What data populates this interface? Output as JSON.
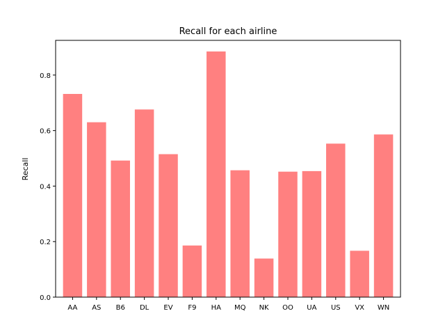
{
  "chart_data": {
    "type": "bar",
    "title": "Recall for each airline",
    "xlabel": "",
    "ylabel": "Recall",
    "categories": [
      "AA",
      "AS",
      "B6",
      "DL",
      "EV",
      "F9",
      "HA",
      "MQ",
      "NK",
      "OO",
      "UA",
      "US",
      "VX",
      "WN"
    ],
    "values": [
      0.732,
      0.63,
      0.492,
      0.676,
      0.515,
      0.186,
      0.885,
      0.457,
      0.139,
      0.452,
      0.454,
      0.553,
      0.167,
      0.586
    ],
    "ylim": [
      0,
      0.925
    ],
    "yticks": [
      "0.0",
      "0.2",
      "0.4",
      "0.6",
      "0.8"
    ],
    "grid": false,
    "bar_color": "#ff8080"
  }
}
